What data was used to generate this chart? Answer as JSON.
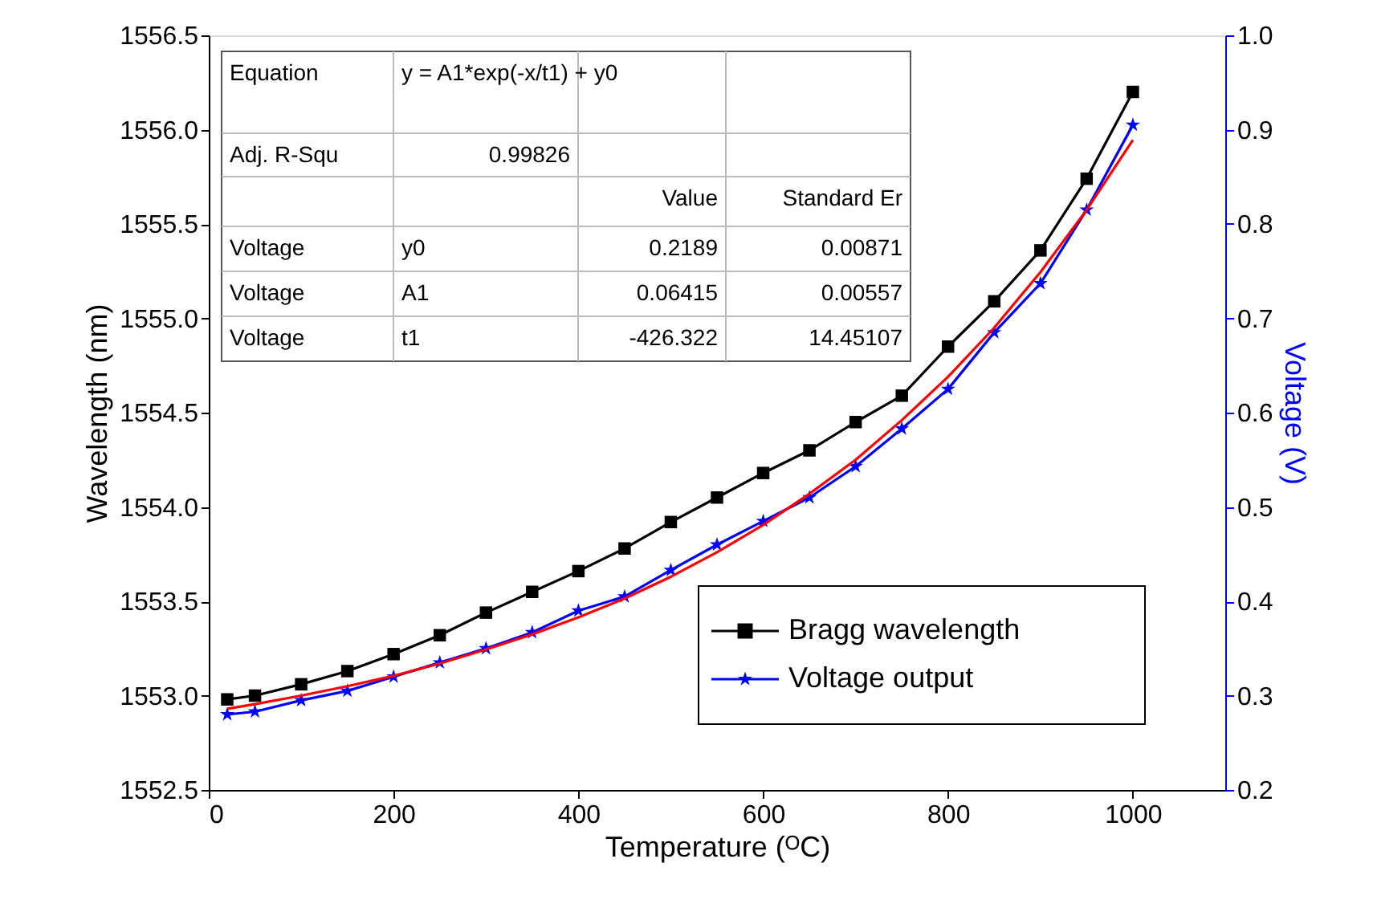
{
  "chart_data": {
    "type": "line",
    "xlabel": "Temperature (ᴼC)",
    "ylabel": "Wavelength (nm)",
    "y2label": "Voltage (V)",
    "xlim": [
      0,
      1100
    ],
    "xticks": [
      0,
      200,
      400,
      600,
      800,
      {
        "value": 1000,
        "label": "1000"
      }
    ],
    "ylim": [
      1552.5,
      1556.5
    ],
    "yticks": [
      1552.5,
      {
        "value": 1553,
        "label": "1553.0"
      },
      1553.5,
      {
        "value": 1554,
        "label": "1554.0"
      },
      1554.5,
      {
        "value": 1555,
        "label": "1555.0"
      },
      1555.5,
      {
        "value": 1556,
        "label": "1556.0"
      },
      1556.5
    ],
    "y2lim": [
      0.2,
      1.0
    ],
    "y2ticks": [
      0.2,
      0.3,
      0.4,
      0.5,
      0.6,
      0.7,
      0.8,
      0.9,
      {
        "value": 1,
        "label": "1.0"
      }
    ],
    "x": [
      20,
      50,
      100,
      150,
      200,
      250,
      300,
      350,
      400,
      450,
      500,
      550,
      600,
      650,
      700,
      750,
      800,
      850,
      900,
      950,
      1000
    ],
    "series": [
      {
        "name": "Bragg wavelength",
        "color": "#000000",
        "marker": "square",
        "values": [
          1552.98,
          1553.0,
          1553.06,
          1553.13,
          1553.22,
          1553.32,
          1553.44,
          1553.55,
          1553.66,
          1553.78,
          1553.92,
          1554.05,
          1554.18,
          1554.3,
          1554.45,
          1554.59,
          1554.85,
          1555.09,
          1555.36,
          1555.74,
          1556.2
        ]
      },
      {
        "name": "Voltage output",
        "color": "#0000ff",
        "marker": "star",
        "axis": "y2",
        "values": [
          0.28,
          0.283,
          0.295,
          0.305,
          0.32,
          0.335,
          0.35,
          0.367,
          0.39,
          0.405,
          0.433,
          0.46,
          0.485,
          0.51,
          0.543,
          0.583,
          0.625,
          0.685,
          0.737,
          0.815,
          0.905
        ]
      },
      {
        "type": "line",
        "color": "#ff0000",
        "marker": "none",
        "axis": "y2",
        "values": [
          0.286,
          0.291,
          0.3,
          0.31,
          0.321,
          0.334,
          0.349,
          0.365,
          0.383,
          0.403,
          0.426,
          0.452,
          0.481,
          0.514,
          0.55,
          0.592,
          0.638,
          0.69,
          0.749,
          0.815,
          0.889
        ]
      }
    ],
    "annotations": [
      "Equation",
      "y = A1*exp(-x/t1) + y0",
      "Adj. R-Squ",
      "0.99826",
      "Value",
      "Standard Er",
      "Voltage",
      "y0",
      "0.2189",
      "0.00871",
      "Voltage",
      "A1",
      "0.06415",
      "0.00557",
      "Voltage",
      "t1",
      "-426.322",
      "14.45107"
    ],
    "legend": "bottom right",
    "grid": false
  }
}
